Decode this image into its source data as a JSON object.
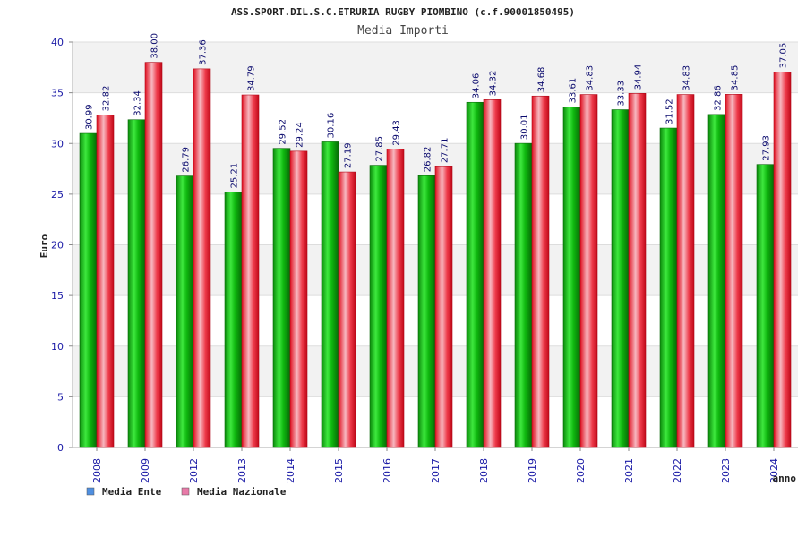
{
  "chart_data": {
    "type": "bar",
    "title": "ASS.SPORT.DIL.S.C.ETRURIA RUGBY PIOMBINO (c.f.90001850495)",
    "subtitle": "Media Importi",
    "xlabel": "anno",
    "ylabel": "Euro",
    "ylim": [
      0,
      40
    ],
    "yticks": [
      0,
      5,
      10,
      15,
      20,
      25,
      30,
      35,
      40
    ],
    "categories": [
      "2008",
      "2009",
      "2012",
      "2013",
      "2014",
      "2015",
      "2016",
      "2017",
      "2018",
      "2019",
      "2020",
      "2021",
      "2022",
      "2023",
      "2024"
    ],
    "series": [
      {
        "name": "Media Ente",
        "color": "#4f8fe0",
        "values": [
          30.99,
          32.34,
          26.79,
          25.21,
          29.52,
          30.16,
          27.85,
          26.82,
          34.06,
          30.01,
          33.61,
          33.33,
          31.52,
          32.86,
          27.93
        ],
        "labels": [
          "30.99",
          "32.34",
          "26.79",
          "25.21",
          "29.52",
          "30.16",
          "27.85",
          "26.82",
          "34.06",
          "30.01",
          "33.61",
          "33.33",
          "31.52",
          "32.86",
          "27.93"
        ]
      },
      {
        "name": "Media Nazionale",
        "color": "#e87aa8",
        "values": [
          32.82,
          38.0,
          37.36,
          34.79,
          29.24,
          27.19,
          29.43,
          27.71,
          34.32,
          34.68,
          34.83,
          34.94,
          34.83,
          34.85,
          37.05
        ],
        "labels": [
          "32.82",
          "38.00",
          "37.36",
          "34.79",
          "29.24",
          "27.19",
          "29.43",
          "27.71",
          "34.32",
          "34.68",
          "34.83",
          "34.94",
          "34.83",
          "34.85",
          "37.05"
        ]
      }
    ],
    "legend": "bottom-left",
    "grid": true
  }
}
